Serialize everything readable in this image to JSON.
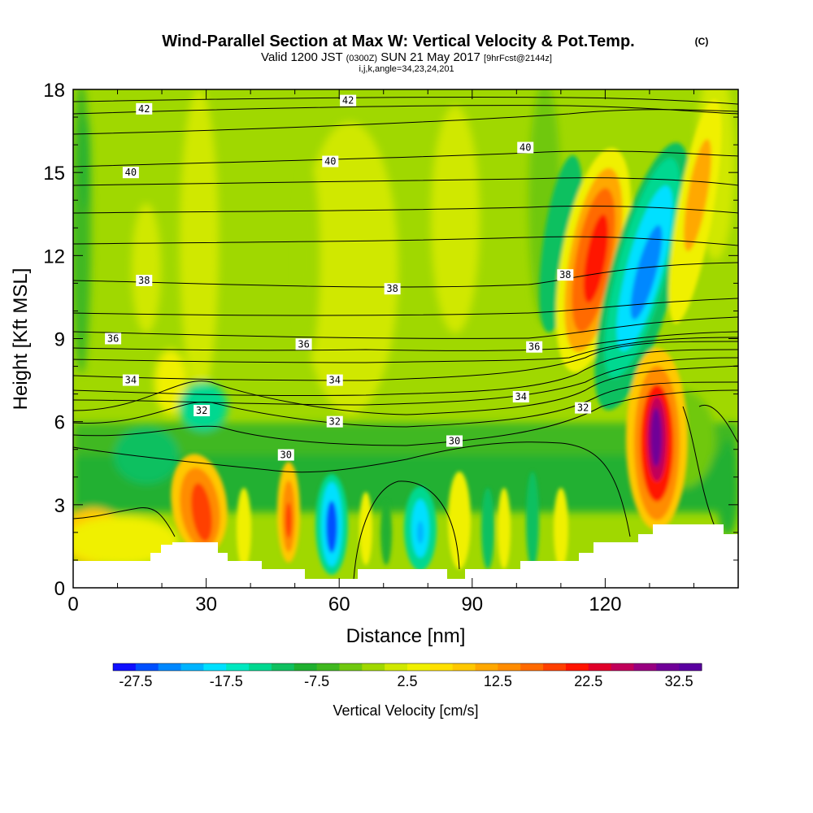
{
  "title": "Wind-Parallel Section at Max W: Vertical Velocity & Pot.Temp.",
  "copyright": "(C)",
  "subtitle_prefix": "Valid 1200 JST",
  "subtitle_z": "(0300Z)",
  "subtitle_date": "SUN 21 May 2017",
  "subtitle_fcst": "[9hrFcst@2144z]",
  "params": "i,j,k,angle=34,23,24,201",
  "chart_data": {
    "type": "heatmap",
    "title": "Wind-Parallel Section at Max W: Vertical Velocity & Pot.Temp.",
    "xlabel": "Distance [nm]",
    "ylabel": "Height [Kft MSL]",
    "xlim": [
      0,
      150
    ],
    "ylim": [
      0,
      18
    ],
    "xticks": [
      0,
      30,
      60,
      90,
      120
    ],
    "yticks": [
      0,
      3,
      6,
      9,
      12,
      15,
      18
    ],
    "colorbar": {
      "label": "Vertical Velocity [cm/s]",
      "min": -30,
      "max": 35,
      "step": 2.5,
      "tick_labels": [
        "-27.5",
        "-17.5",
        "-7.5",
        "2.5",
        "12.5",
        "22.5",
        "32.5"
      ],
      "colors": [
        "#1010ff",
        "#0050ff",
        "#0088ff",
        "#00b4ff",
        "#00e0ff",
        "#00e8c0",
        "#00d890",
        "#10c060",
        "#20b030",
        "#40b820",
        "#70c810",
        "#a0d800",
        "#d0e800",
        "#f0f000",
        "#ffe000",
        "#ffc800",
        "#ffa800",
        "#ff8c00",
        "#ff6a00",
        "#ff4000",
        "#ff1400",
        "#e0002a",
        "#c0005a",
        "#980080",
        "#700098",
        "#5a00a0"
      ]
    },
    "velocity_features": [
      {
        "x": 28,
        "z": 2.5,
        "w": 22,
        "type": "updraft"
      },
      {
        "x": 49,
        "z": 2.5,
        "w": 18,
        "type": "updraft"
      },
      {
        "x": 58,
        "z": 2.3,
        "w": -24,
        "type": "downdraft"
      },
      {
        "x": 78,
        "z": 2.2,
        "w": -18,
        "type": "downdraft"
      },
      {
        "x": 117,
        "z": 11,
        "w": 22,
        "type": "updraft"
      },
      {
        "x": 126,
        "z": 11,
        "w": -24,
        "type": "downdraft"
      },
      {
        "x": 130,
        "z": 5.5,
        "w": 33,
        "type": "updraft"
      }
    ],
    "potential_temperature_contours": [
      {
        "level": "30",
        "label_x": 48,
        "label_z": 4.8
      },
      {
        "level": "30",
        "label_x": 86,
        "label_z": 5.3
      },
      {
        "level": "32",
        "label_x": 29,
        "label_z": 6.4
      },
      {
        "level": "32",
        "label_x": 59,
        "label_z": 6.0
      },
      {
        "level": "32",
        "label_x": 115,
        "label_z": 6.5
      },
      {
        "level": "34",
        "label_x": 13,
        "label_z": 7.5
      },
      {
        "level": "34",
        "label_x": 59,
        "label_z": 7.5
      },
      {
        "level": "34",
        "label_x": 101,
        "label_z": 6.9
      },
      {
        "level": "36",
        "label_x": 9,
        "label_z": 9.0
      },
      {
        "level": "36",
        "label_x": 52,
        "label_z": 8.8
      },
      {
        "level": "36",
        "label_x": 104,
        "label_z": 8.7
      },
      {
        "level": "38",
        "label_x": 16,
        "label_z": 11.1
      },
      {
        "level": "38",
        "label_x": 72,
        "label_z": 10.8
      },
      {
        "level": "38",
        "label_x": 111,
        "label_z": 11.3
      },
      {
        "level": "40",
        "label_x": 13,
        "label_z": 15.0
      },
      {
        "level": "40",
        "label_x": 58,
        "label_z": 15.4
      },
      {
        "level": "40",
        "label_x": 102,
        "label_z": 15.9
      },
      {
        "level": "42",
        "label_x": 16,
        "label_z": 17.3
      },
      {
        "level": "42",
        "label_x": 62,
        "label_z": 17.6
      }
    ]
  }
}
